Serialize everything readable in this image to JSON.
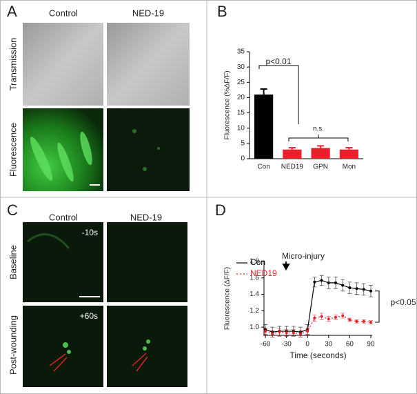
{
  "panels": {
    "a": {
      "label": "A",
      "columns": [
        "Control",
        "NED-19"
      ],
      "rows": [
        "Transmission",
        "Fluorescence"
      ]
    },
    "b": {
      "label": "B"
    },
    "c": {
      "label": "C",
      "columns": [
        "Control",
        "NED-19"
      ],
      "rows": [
        "Baseline",
        "Post-wounding"
      ],
      "time_labels": [
        "-10s",
        "+60s"
      ]
    },
    "d": {
      "label": "D"
    }
  },
  "chart_data": [
    {
      "type": "bar",
      "ylabel": "Fluorescence (%ΔF/F)",
      "categories": [
        "Con",
        "NED19",
        "GPN",
        "Mon"
      ],
      "values": [
        21,
        3,
        3.5,
        3
      ],
      "errors": [
        1.8,
        0.6,
        0.7,
        0.6
      ],
      "colors": [
        "#000000",
        "#e8202a",
        "#e8202a",
        "#e8202a"
      ],
      "ylim": [
        0,
        35
      ],
      "yticks": [
        0,
        5,
        10,
        15,
        20,
        25,
        30,
        35
      ],
      "grid": false,
      "annotations": [
        "p<0.01",
        "n.s."
      ]
    },
    {
      "type": "line",
      "xlabel": "Time (seconds)",
      "ylabel": "Fluorescence (ΔF/F)",
      "x": [
        -60,
        -50,
        -40,
        -30,
        -20,
        -10,
        0,
        10,
        20,
        30,
        40,
        50,
        60,
        70,
        80,
        90
      ],
      "series": [
        {
          "name": "Con",
          "color": "#000000",
          "dash": "solid",
          "values": [
            0.97,
            0.94,
            0.95,
            0.95,
            0.95,
            0.94,
            0.97,
            1.55,
            1.57,
            1.54,
            1.54,
            1.51,
            1.48,
            1.47,
            1.46,
            1.44
          ],
          "errors": [
            0.06,
            0.06,
            0.06,
            0.06,
            0.06,
            0.06,
            0.06,
            0.06,
            0.06,
            0.07,
            0.07,
            0.07,
            0.07,
            0.07,
            0.07,
            0.07
          ]
        },
        {
          "name": "NED19",
          "color": "#e8202a",
          "dash": "dotted",
          "values": [
            0.95,
            0.92,
            0.94,
            0.93,
            0.93,
            0.92,
            0.95,
            1.11,
            1.13,
            1.1,
            1.12,
            1.14,
            1.09,
            1.07,
            1.07,
            1.06
          ],
          "errors": [
            0.04,
            0.04,
            0.04,
            0.04,
            0.04,
            0.04,
            0.04,
            0.04,
            0.04,
            0.03,
            0.03,
            0.03,
            0.02,
            0.02,
            0.02,
            0.02
          ]
        }
      ],
      "xlim": [
        -62,
        92
      ],
      "xticks": [
        -60,
        -30,
        0,
        30,
        60,
        90
      ],
      "ylim": [
        0.9,
        1.8
      ],
      "yticks": [
        {
          "value": 1.0,
          "label": "1.0"
        },
        1.2,
        1.4,
        1.6,
        1.8
      ],
      "grid": false,
      "legend": "upper left",
      "annotations": [
        "Micro-injury",
        "p<0.05"
      ]
    }
  ]
}
